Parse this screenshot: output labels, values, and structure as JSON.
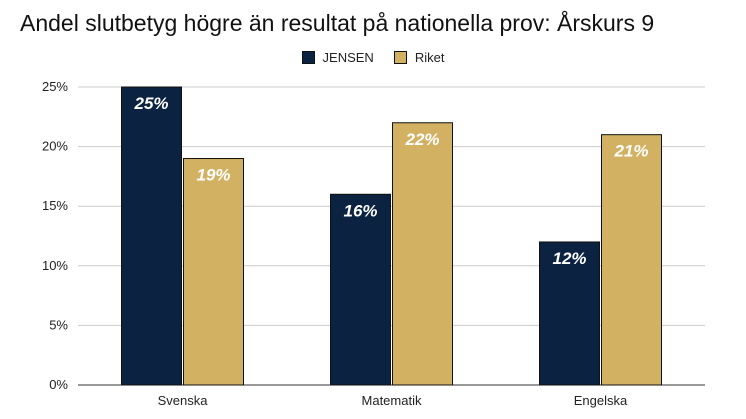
{
  "chart_data": {
    "type": "bar",
    "title": "Andel slutbetyg högre än resultat på nationella prov: Årskurs 9",
    "categories": [
      "Svenska",
      "Matematik",
      "Engelska"
    ],
    "series": [
      {
        "name": "JENSEN",
        "values": [
          25,
          16,
          12
        ],
        "labels": [
          "25%",
          "16%",
          "12%"
        ],
        "color": "#0b2240"
      },
      {
        "name": "Riket",
        "values": [
          19,
          22,
          21
        ],
        "labels": [
          "19%",
          "22%",
          "21%"
        ],
        "color": "#d3b163"
      }
    ],
    "ylim": [
      0,
      25
    ],
    "yticks": [
      0,
      5,
      10,
      15,
      20,
      25
    ],
    "ytick_labels": [
      "0%",
      "5%",
      "10%",
      "15%",
      "20%",
      "25%"
    ],
    "xlabel": "",
    "ylabel": "",
    "grid": true,
    "legend_position": "top-center"
  }
}
